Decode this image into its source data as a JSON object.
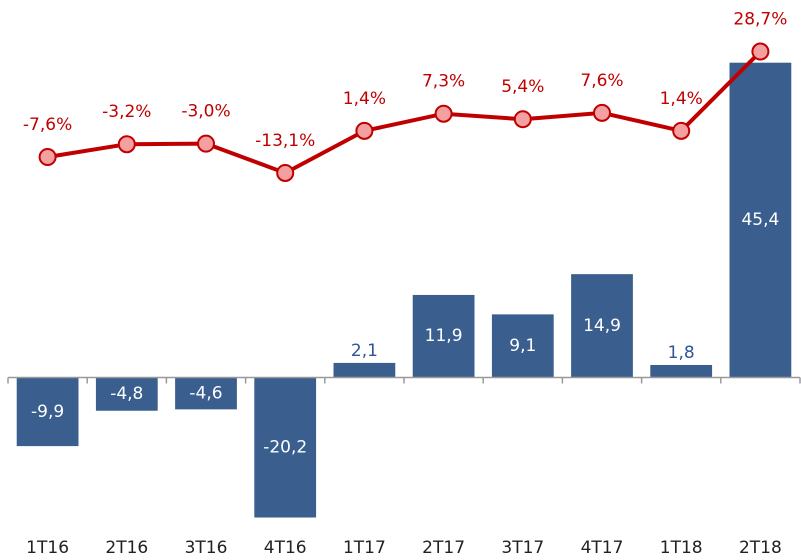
{
  "chart_data": {
    "type": "bar-line",
    "categories": [
      "1T16",
      "2T16",
      "3T16",
      "4T16",
      "1T17",
      "2T17",
      "3T17",
      "4T17",
      "1T18",
      "2T18"
    ],
    "series": [
      {
        "type": "bar",
        "color": "#3a5f8f",
        "label_color": "#2f5597",
        "values": [
          -9.9,
          -4.8,
          -4.6,
          -20.2,
          2.1,
          11.9,
          9.1,
          14.9,
          1.8,
          45.4
        ],
        "value_labels": [
          "-9,9",
          "-4,8",
          "-4,6",
          "-20,2",
          "2,1",
          "11,9",
          "9,1",
          "14,9",
          "1,8",
          "45,4"
        ]
      },
      {
        "type": "line",
        "axis": "y2",
        "color": "#c00000",
        "marker_color": "#f4a0a0",
        "values": [
          -7.6,
          -3.2,
          -3.0,
          -13.1,
          1.4,
          7.3,
          5.4,
          7.6,
          1.4,
          28.7
        ],
        "value_labels": [
          "-7,6%",
          "-3,2%",
          "-3,0%",
          "-13,1%",
          "1,4%",
          "7,3%",
          "5,4%",
          "7,6%",
          "1,4%",
          "28,7%"
        ]
      }
    ],
    "ylim": [
      -22,
      53
    ],
    "y2lim": [
      -136,
      43
    ]
  }
}
